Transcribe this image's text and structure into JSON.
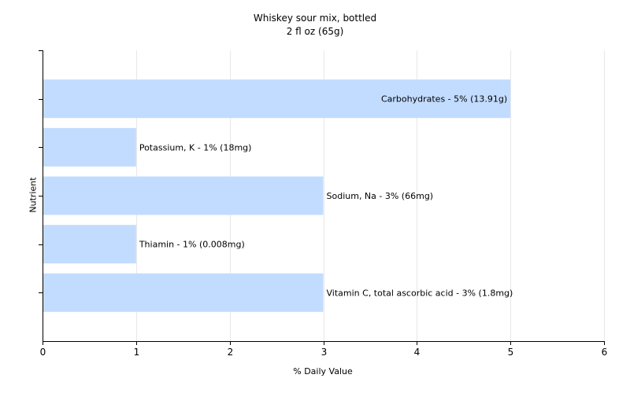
{
  "chart_data": {
    "type": "bar",
    "orientation": "horizontal",
    "title": "Whiskey sour mix, bottled",
    "subtitle": "2 fl oz (65g)",
    "xlabel": "% Daily Value",
    "ylabel": "Nutrient",
    "xlim": [
      0,
      6
    ],
    "xticks": [
      "0",
      "1",
      "2",
      "3",
      "4",
      "5",
      "6"
    ],
    "grid": true,
    "categories": [
      "Carbohydrates",
      "Potassium, K",
      "Sodium, Na",
      "Thiamin",
      "Vitamin C, total ascorbic acid"
    ],
    "values": [
      5,
      1,
      3,
      1,
      3
    ],
    "labels": [
      "Carbohydrates - 5% (13.91g)",
      "Potassium, K - 1% (18mg)",
      "Sodium, Na - 3% (66mg)",
      "Thiamin - 1% (0.008mg)",
      "Vitamin C, total ascorbic acid - 3% (1.8mg)"
    ],
    "bar_color": "#c2dcff",
    "grid_color": "#e8e8e8"
  }
}
